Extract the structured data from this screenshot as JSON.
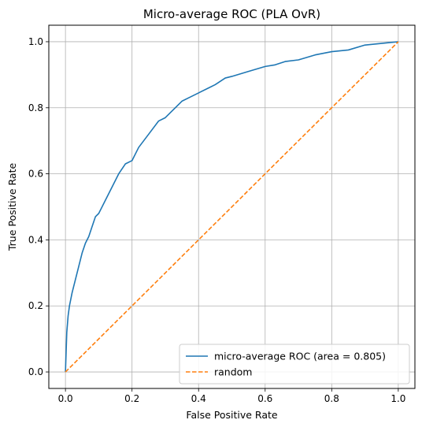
{
  "chart_data": {
    "type": "line",
    "title": "Micro-average ROC (PLA OvR)",
    "xlabel": "False Positive Rate",
    "ylabel": "True Positive Rate",
    "xlim": [
      -0.05,
      1.05
    ],
    "ylim": [
      -0.05,
      1.05
    ],
    "xticks": [
      "0.0",
      "0.2",
      "0.4",
      "0.6",
      "0.8",
      "1.0"
    ],
    "yticks": [
      "0.0",
      "0.2",
      "0.4",
      "0.6",
      "0.8",
      "1.0"
    ],
    "grid": true,
    "legend_position": "lower-right",
    "series": [
      {
        "name": "micro-average ROC (area = 0.805)",
        "color": "#1f77b4",
        "style": "solid",
        "x": [
          0.0,
          0.002,
          0.004,
          0.008,
          0.012,
          0.02,
          0.03,
          0.04,
          0.05,
          0.06,
          0.07,
          0.08,
          0.09,
          0.1,
          0.12,
          0.14,
          0.16,
          0.18,
          0.2,
          0.22,
          0.25,
          0.28,
          0.3,
          0.32,
          0.35,
          0.37,
          0.4,
          0.43,
          0.45,
          0.48,
          0.5,
          0.55,
          0.6,
          0.63,
          0.66,
          0.7,
          0.75,
          0.8,
          0.85,
          0.9,
          0.95,
          1.0
        ],
        "y": [
          0.0,
          0.06,
          0.12,
          0.17,
          0.2,
          0.24,
          0.28,
          0.32,
          0.36,
          0.39,
          0.41,
          0.44,
          0.47,
          0.48,
          0.52,
          0.56,
          0.6,
          0.63,
          0.64,
          0.68,
          0.72,
          0.76,
          0.77,
          0.79,
          0.82,
          0.83,
          0.845,
          0.86,
          0.87,
          0.89,
          0.895,
          0.91,
          0.925,
          0.93,
          0.94,
          0.945,
          0.96,
          0.97,
          0.975,
          0.99,
          0.995,
          1.0
        ]
      },
      {
        "name": "random",
        "color": "#ff7f0e",
        "style": "dashed",
        "x": [
          0.0,
          1.0
        ],
        "y": [
          0.0,
          1.0
        ]
      }
    ]
  }
}
